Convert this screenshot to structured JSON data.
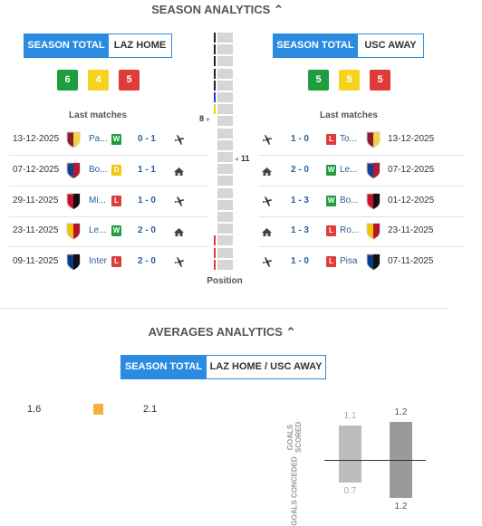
{
  "season": {
    "title": "SEASON ANALYTICS",
    "left": {
      "tabs": [
        "SEASON TOTAL",
        "LAZ HOME"
      ],
      "form": [
        6,
        4,
        5
      ],
      "last_title": "Last matches",
      "rank": 8,
      "matches": [
        {
          "date": "13-12-2025",
          "team": "Pa...",
          "result": "W",
          "score": "0 - 1",
          "venue": "away"
        },
        {
          "date": "07-12-2025",
          "team": "Bo...",
          "result": "D",
          "score": "1 - 1",
          "venue": "home"
        },
        {
          "date": "29-11-2025",
          "team": "Mi...",
          "result": "L",
          "score": "1 - 0",
          "venue": "away"
        },
        {
          "date": "23-11-2025",
          "team": "Le...",
          "result": "W",
          "score": "2 - 0",
          "venue": "home"
        },
        {
          "date": "09-11-2025",
          "team": "Inter",
          "result": "L",
          "score": "2 - 0",
          "venue": "away"
        }
      ]
    },
    "right": {
      "tabs": [
        "SEASON TOTAL",
        "USC AWAY"
      ],
      "form": [
        5,
        5,
        5
      ],
      "last_title": "Last matches",
      "rank": 11,
      "matches": [
        {
          "date": "13-12-2025",
          "team": "To...",
          "result": "L",
          "score": "1 - 0",
          "venue": "away"
        },
        {
          "date": "07-12-2025",
          "team": "Le...",
          "result": "W",
          "score": "2 - 0",
          "venue": "home"
        },
        {
          "date": "01-12-2025",
          "team": "Bo...",
          "result": "W",
          "score": "1 - 3",
          "venue": "away"
        },
        {
          "date": "23-11-2025",
          "team": "Ro...",
          "result": "L",
          "score": "1 - 3",
          "venue": "home"
        },
        {
          "date": "07-11-2025",
          "team": "Pisa",
          "result": "L",
          "score": "1 - 0",
          "venue": "away"
        }
      ]
    },
    "position_label": "Position"
  },
  "averages": {
    "title": "AVERAGES ANALYTICS",
    "tabs": [
      "SEASON TOTAL",
      "LAZ HOME / USC AWAY"
    ],
    "left_value": 1.6,
    "right_value": 2.1,
    "scored_label": "GOALS SCORED",
    "conceded_label": "GOALS CONCEDED",
    "scored": [
      1.1,
      1.2
    ],
    "conceded": [
      0.7,
      1.2
    ]
  }
}
